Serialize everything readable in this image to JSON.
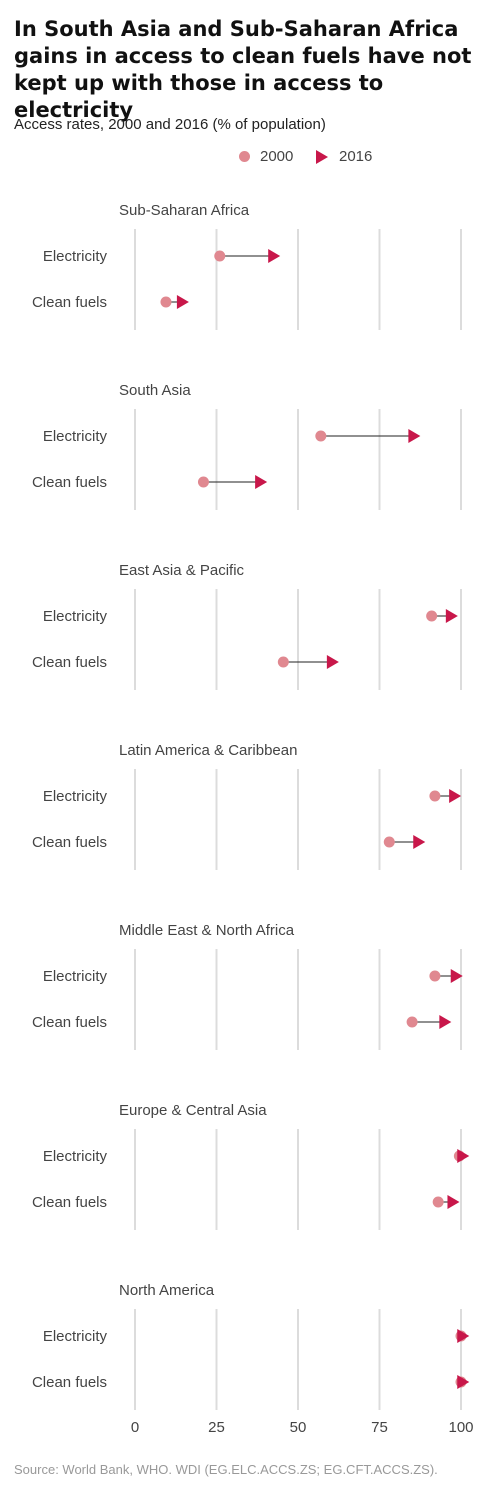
{
  "title": "In South Asia and Sub-Saharan Africa gains in access to clean fuels have not kept up with those in access to electricity",
  "subtitle": "Access rates, 2000 and 2016 (% of population)",
  "legend": [
    {
      "label": "2000",
      "shape": "dot"
    },
    {
      "label": "2016",
      "shape": "triangle"
    }
  ],
  "source": "Source: World Bank, WHO. WDI (EG.ELC.ACCS.ZS; EG.CFT.ACCS.ZS).",
  "colors": {
    "start": "#e08890",
    "end": "#c8174a",
    "grid": "#dcdcdc",
    "line": "#222222"
  },
  "chart_data": {
    "type": "dumbbell",
    "series": [
      {
        "name": "2000"
      },
      {
        "name": "2016"
      }
    ],
    "x_ticks": [
      0,
      25,
      50,
      75,
      100
    ],
    "xlim": [
      0,
      100
    ],
    "grid": true,
    "legend_position": "top-center",
    "panels": [
      {
        "region": "Sub-Saharan Africa",
        "rows": [
          {
            "label": "Electricity",
            "v2000": 26,
            "v2016": 43
          },
          {
            "label": "Clean fuels",
            "v2000": 9.5,
            "v2016": 15
          }
        ]
      },
      {
        "region": "South Asia",
        "rows": [
          {
            "label": "Electricity",
            "v2000": 57,
            "v2016": 86
          },
          {
            "label": "Clean fuels",
            "v2000": 21,
            "v2016": 39
          }
        ]
      },
      {
        "region": "East Asia & Pacific",
        "rows": [
          {
            "label": "Electricity",
            "v2000": 91,
            "v2016": 97.5
          },
          {
            "label": "Clean fuels",
            "v2000": 45.5,
            "v2016": 61
          }
        ]
      },
      {
        "region": "Latin America & Caribbean",
        "rows": [
          {
            "label": "Electricity",
            "v2000": 92,
            "v2016": 98.5
          },
          {
            "label": "Clean fuels",
            "v2000": 78,
            "v2016": 87.5
          }
        ]
      },
      {
        "region": "Middle East & North Africa",
        "rows": [
          {
            "label": "Electricity",
            "v2000": 92,
            "v2016": 99
          },
          {
            "label": "Clean fuels",
            "v2000": 85,
            "v2016": 95.5
          }
        ]
      },
      {
        "region": "Europe & Central Asia",
        "rows": [
          {
            "label": "Electricity",
            "v2000": 99.5,
            "v2016": 101
          },
          {
            "label": "Clean fuels",
            "v2000": 93,
            "v2016": 98
          }
        ]
      },
      {
        "region": "North America",
        "rows": [
          {
            "label": "Electricity",
            "v2000": 100,
            "v2016": 101
          },
          {
            "label": "Clean fuels",
            "v2000": 100,
            "v2016": 101
          }
        ]
      }
    ]
  }
}
